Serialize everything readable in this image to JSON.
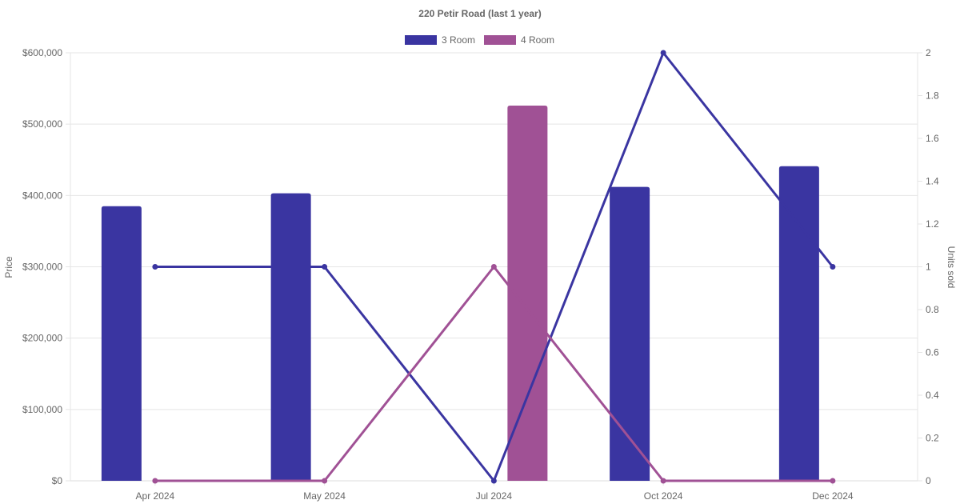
{
  "chart_data": {
    "type": "bar",
    "title": "220 Petir Road (last 1 year)",
    "categories": [
      "Apr 2024",
      "May 2024",
      "Jul 2024",
      "Oct 2024",
      "Dec 2024"
    ],
    "series": [
      {
        "name": "3 Room",
        "color": "#3a35a1",
        "price": [
          385000,
          403000,
          null,
          412000,
          441000
        ],
        "units": [
          1,
          1,
          0,
          2,
          1
        ]
      },
      {
        "name": "4 Room",
        "color": "#a05195",
        "price": [
          null,
          null,
          526000,
          null,
          null
        ],
        "units": [
          0,
          0,
          1,
          0,
          0
        ]
      }
    ],
    "y_left": {
      "label": "Price",
      "range": [
        0,
        600000
      ],
      "ticks": [
        0,
        100000,
        200000,
        300000,
        400000,
        500000,
        600000
      ],
      "tick_labels": [
        "$0",
        "$100,000",
        "$200,000",
        "$300,000",
        "$400,000",
        "$500,000",
        "$600,000"
      ]
    },
    "y_right": {
      "label": "Units sold",
      "range": [
        0,
        2
      ],
      "ticks": [
        0,
        0.2,
        0.4,
        0.6,
        0.8,
        1,
        1.2,
        1.4,
        1.6,
        1.8,
        2
      ],
      "tick_labels": [
        "0",
        "0.2",
        "0.4",
        "0.6",
        "0.8",
        "1",
        "1.2",
        "1.4",
        "1.6",
        "1.8",
        "2"
      ]
    },
    "grid": true,
    "legend_position": "top"
  }
}
